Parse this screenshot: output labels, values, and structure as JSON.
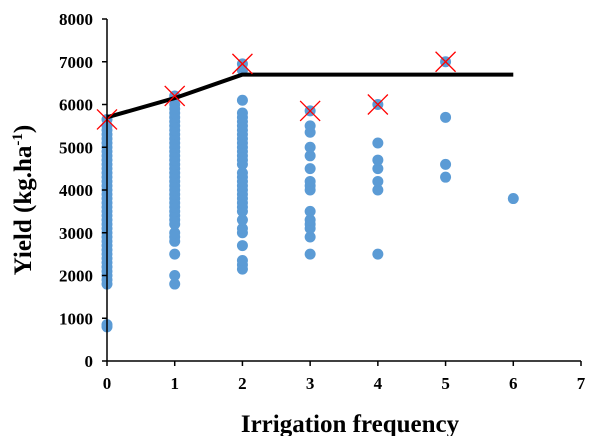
{
  "chart_data": {
    "type": "scatter",
    "xlabel": "Irrigation frequency",
    "ylabel": "Yield (kg.ha",
    "ylabel_sup": "-1",
    "ylabel_close": ")",
    "xlim": [
      0,
      7
    ],
    "ylim": [
      0,
      8000
    ],
    "x_ticks": [
      "0",
      "1",
      "2",
      "3",
      "4",
      "5",
      "6",
      "7"
    ],
    "y_ticks": [
      "0",
      "1000",
      "2000",
      "3000",
      "4000",
      "5000",
      "6000",
      "7000",
      "8000"
    ],
    "grid": false,
    "legend": "none",
    "colors": {
      "points": "#5b9bd5",
      "frontier": "#000000",
      "markers": "#ff0000"
    },
    "series": [
      {
        "type": "scatter",
        "points": [
          [
            0,
            800
          ],
          [
            0,
            850
          ],
          [
            0,
            1800
          ],
          [
            0,
            1900
          ],
          [
            0,
            2000
          ],
          [
            0,
            2100
          ],
          [
            0,
            2200
          ],
          [
            0,
            2300
          ],
          [
            0,
            2400
          ],
          [
            0,
            2500
          ],
          [
            0,
            2600
          ],
          [
            0,
            2700
          ],
          [
            0,
            2800
          ],
          [
            0,
            2900
          ],
          [
            0,
            3000
          ],
          [
            0,
            3100
          ],
          [
            0,
            3200
          ],
          [
            0,
            3300
          ],
          [
            0,
            3400
          ],
          [
            0,
            3500
          ],
          [
            0,
            3600
          ],
          [
            0,
            3700
          ],
          [
            0,
            3800
          ],
          [
            0,
            3900
          ],
          [
            0,
            4000
          ],
          [
            0,
            4100
          ],
          [
            0,
            4200
          ],
          [
            0,
            4300
          ],
          [
            0,
            4400
          ],
          [
            0,
            4500
          ],
          [
            0,
            4600
          ],
          [
            0,
            4700
          ],
          [
            0,
            4800
          ],
          [
            0,
            4900
          ],
          [
            0,
            5000
          ],
          [
            0,
            5100
          ],
          [
            0,
            5200
          ],
          [
            0,
            5300
          ],
          [
            0,
            5400
          ],
          [
            0,
            5500
          ],
          [
            0,
            5650
          ],
          [
            1,
            1800
          ],
          [
            1,
            2000
          ],
          [
            1,
            2500
          ],
          [
            1,
            2800
          ],
          [
            1,
            2900
          ],
          [
            1,
            3000
          ],
          [
            1,
            3200
          ],
          [
            1,
            3300
          ],
          [
            1,
            3400
          ],
          [
            1,
            3500
          ],
          [
            1,
            3600
          ],
          [
            1,
            3700
          ],
          [
            1,
            3800
          ],
          [
            1,
            3900
          ],
          [
            1,
            4000
          ],
          [
            1,
            4100
          ],
          [
            1,
            4200
          ],
          [
            1,
            4300
          ],
          [
            1,
            4400
          ],
          [
            1,
            4500
          ],
          [
            1,
            4600
          ],
          [
            1,
            4700
          ],
          [
            1,
            4800
          ],
          [
            1,
            4900
          ],
          [
            1,
            5000
          ],
          [
            1,
            5100
          ],
          [
            1,
            5200
          ],
          [
            1,
            5300
          ],
          [
            1,
            5400
          ],
          [
            1,
            5500
          ],
          [
            1,
            5600
          ],
          [
            1,
            5700
          ],
          [
            1,
            5800
          ],
          [
            1,
            5900
          ],
          [
            1,
            6000
          ],
          [
            1,
            6200
          ],
          [
            2,
            2150
          ],
          [
            2,
            2250
          ],
          [
            2,
            2350
          ],
          [
            2,
            2700
          ],
          [
            2,
            3000
          ],
          [
            2,
            3100
          ],
          [
            2,
            3300
          ],
          [
            2,
            3500
          ],
          [
            2,
            3600
          ],
          [
            2,
            3700
          ],
          [
            2,
            3800
          ],
          [
            2,
            3900
          ],
          [
            2,
            4000
          ],
          [
            2,
            4100
          ],
          [
            2,
            4200
          ],
          [
            2,
            4300
          ],
          [
            2,
            4400
          ],
          [
            2,
            4600
          ],
          [
            2,
            4700
          ],
          [
            2,
            4800
          ],
          [
            2,
            4900
          ],
          [
            2,
            5000
          ],
          [
            2,
            5100
          ],
          [
            2,
            5200
          ],
          [
            2,
            5300
          ],
          [
            2,
            5400
          ],
          [
            2,
            5500
          ],
          [
            2,
            5600
          ],
          [
            2,
            5700
          ],
          [
            2,
            5800
          ],
          [
            2,
            6100
          ],
          [
            2,
            6800
          ],
          [
            2,
            6950
          ],
          [
            3,
            2500
          ],
          [
            3,
            2900
          ],
          [
            3,
            3100
          ],
          [
            3,
            3200
          ],
          [
            3,
            3300
          ],
          [
            3,
            3500
          ],
          [
            3,
            4000
          ],
          [
            3,
            4100
          ],
          [
            3,
            4200
          ],
          [
            3,
            4500
          ],
          [
            3,
            4800
          ],
          [
            3,
            5000
          ],
          [
            3,
            5350
          ],
          [
            3,
            5500
          ],
          [
            3,
            5850
          ],
          [
            4,
            2500
          ],
          [
            4,
            4000
          ],
          [
            4,
            4200
          ],
          [
            4,
            4500
          ],
          [
            4,
            4700
          ],
          [
            4,
            5100
          ],
          [
            4,
            6000
          ],
          [
            5,
            4300
          ],
          [
            5,
            4600
          ],
          [
            5,
            5700
          ],
          [
            5,
            7000
          ],
          [
            6,
            3800
          ]
        ]
      },
      {
        "type": "line",
        "points": [
          [
            0,
            5700
          ],
          [
            1,
            6150
          ],
          [
            2,
            6700
          ],
          [
            6,
            6700
          ]
        ]
      },
      {
        "type": "marker",
        "points": [
          [
            0,
            5650
          ],
          [
            1,
            6200
          ],
          [
            2,
            6950
          ],
          [
            3,
            5850
          ],
          [
            4,
            6000
          ],
          [
            5,
            7000
          ]
        ]
      }
    ]
  }
}
